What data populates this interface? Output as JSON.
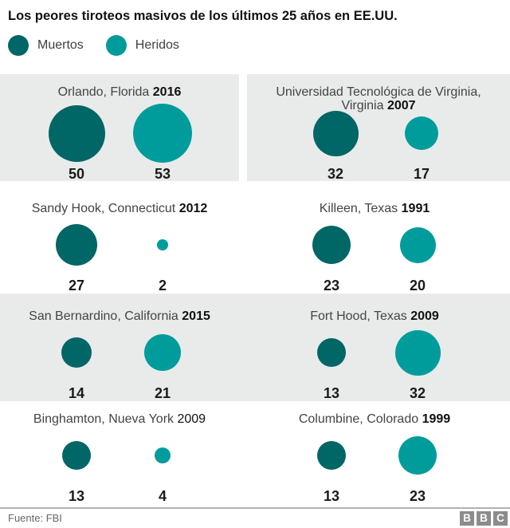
{
  "header": {
    "title": "Los peores tiroteos masivos de los últimos 25 años en EE.UU."
  },
  "legend": {
    "items": [
      {
        "label": "Muertos",
        "color": "#006666"
      },
      {
        "label": "Heridos",
        "color": "#009c9c"
      }
    ]
  },
  "chart_data": {
    "type": "bubble",
    "title": "Los peores tiroteos masivos de los últimos 25 años en EE.UU.",
    "series_names": [
      "Muertos",
      "Heridos"
    ],
    "colors": {
      "muertos": "#006666",
      "heridos": "#009c9c"
    },
    "size_encoding": "circle area proportional to value; diameter_px = 10.1 * sqrt(value)",
    "layout": "2 columns x 4 rows of panels; rows 1 and 3 have gray background",
    "panels": [
      {
        "location": "Orlando, Florida",
        "year": "2016",
        "year_bold": true,
        "muertos": 50,
        "heridos": 53
      },
      {
        "location": "Universidad Tecnológica de Virginia, Virginia",
        "year": "2007",
        "year_bold": true,
        "muertos": 32,
        "heridos": 17
      },
      {
        "location": "Sandy Hook, Connecticut",
        "year": "2012",
        "year_bold": true,
        "muertos": 27,
        "heridos": 2
      },
      {
        "location": "Killeen, Texas",
        "year": "1991",
        "year_bold": true,
        "muertos": 23,
        "heridos": 20
      },
      {
        "location": "San Bernardino, California",
        "year": "2015",
        "year_bold": true,
        "muertos": 14,
        "heridos": 21
      },
      {
        "location": "Fort Hood, Texas",
        "year": "2009",
        "year_bold": true,
        "muertos": 13,
        "heridos": 32
      },
      {
        "location": "Binghamton, Nueva York",
        "year": "2009",
        "year_bold": false,
        "muertos": 13,
        "heridos": 4
      },
      {
        "location": "Columbine, Colorado",
        "year": "1999",
        "year_bold": true,
        "muertos": 13,
        "heridos": 23
      }
    ]
  },
  "style": {
    "panel_bg": "#e9eaea"
  },
  "footer": {
    "source": "Fuente: FBI",
    "logo_letters": [
      "B",
      "B",
      "C"
    ]
  }
}
